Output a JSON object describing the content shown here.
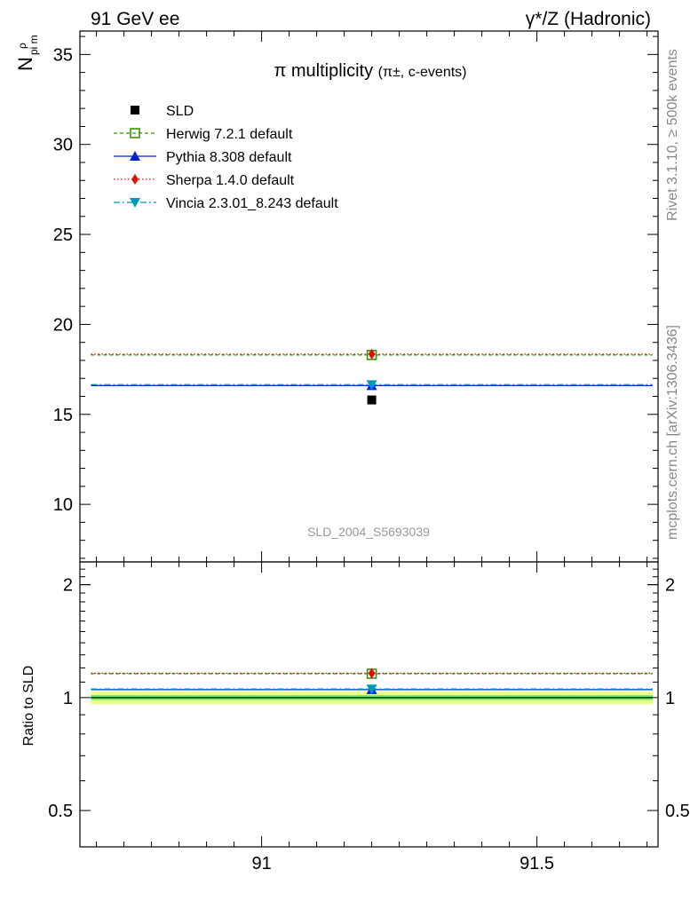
{
  "header": {
    "left": "91 GeV ee",
    "right": "γ*/Z (Hadronic)"
  },
  "side": {
    "rivet": "Rivet 3.1.10, ≥ 500k events",
    "mcplots": "mcplots.cern.ch [arXiv:1306.3436]"
  },
  "ylabel_main": {
    "base": "N",
    "sub": "pi m",
    "sup": "ρ"
  },
  "ylabel_ratio": "Ratio to SLD",
  "title_main": "π multiplicity",
  "title_sub": "(π±, c-events)",
  "watermark": "SLD_2004_S5693039",
  "colors": {
    "data": "#000000",
    "herwig": "#339900",
    "pythia": "#0022cc",
    "sherpa": "#dd1100",
    "vincia": "#0099bb",
    "band_inner": "#66ee66",
    "band_outer": "#eeff88"
  },
  "chart_data": [
    {
      "type": "scatter",
      "panel": "main",
      "x_range": [
        90.67,
        91.72
      ],
      "xticks": [
        91,
        91.5
      ],
      "ylim": [
        6.8,
        36.3
      ],
      "yticks": [
        10,
        15,
        20,
        25,
        30,
        35
      ],
      "ytick_labels": [
        "10",
        "15",
        "20",
        "25",
        "30",
        "35"
      ],
      "x_span": [
        90.69,
        91.71
      ],
      "data": {
        "name": "SLD",
        "x": 91.2,
        "y": 15.8
      },
      "series": [
        {
          "key": "herwig",
          "name": "Herwig 7.2.1 default",
          "y": 18.3,
          "marker": "open-square",
          "dash": "4,3"
        },
        {
          "key": "pythia",
          "name": "Pythia 8.308 default",
          "y": 16.6,
          "marker": "triangle-up",
          "dash": ""
        },
        {
          "key": "sherpa",
          "name": "Sherpa 1.4.0 default",
          "y": 18.35,
          "marker": "diamond",
          "dash": "1.5,2.5"
        },
        {
          "key": "vincia",
          "name": "Vincia 2.3.01_8.243 default",
          "y": 16.65,
          "marker": "triangle-down",
          "dash": "7,3,2,3"
        }
      ],
      "legend_position": "top-left"
    },
    {
      "type": "scatter",
      "panel": "ratio",
      "ylabel": "Ratio to SLD",
      "x_range": [
        90.67,
        91.72
      ],
      "xticks": [
        91,
        91.5
      ],
      "xtick_labels": [
        "91",
        "91.5"
      ],
      "ylim": [
        0.4,
        2.3
      ],
      "yscale": "log",
      "yticks": [
        0.5,
        1,
        2
      ],
      "ytick_labels": [
        "0.5",
        "1",
        "2"
      ],
      "band": {
        "inner": [
          0.985,
          1.015
        ],
        "outer": [
          0.96,
          1.04
        ]
      },
      "series": [
        {
          "key": "herwig",
          "y": 1.158
        },
        {
          "key": "pythia",
          "y": 1.05
        },
        {
          "key": "sherpa",
          "y": 1.161
        },
        {
          "key": "vincia",
          "y": 1.054
        }
      ]
    }
  ]
}
